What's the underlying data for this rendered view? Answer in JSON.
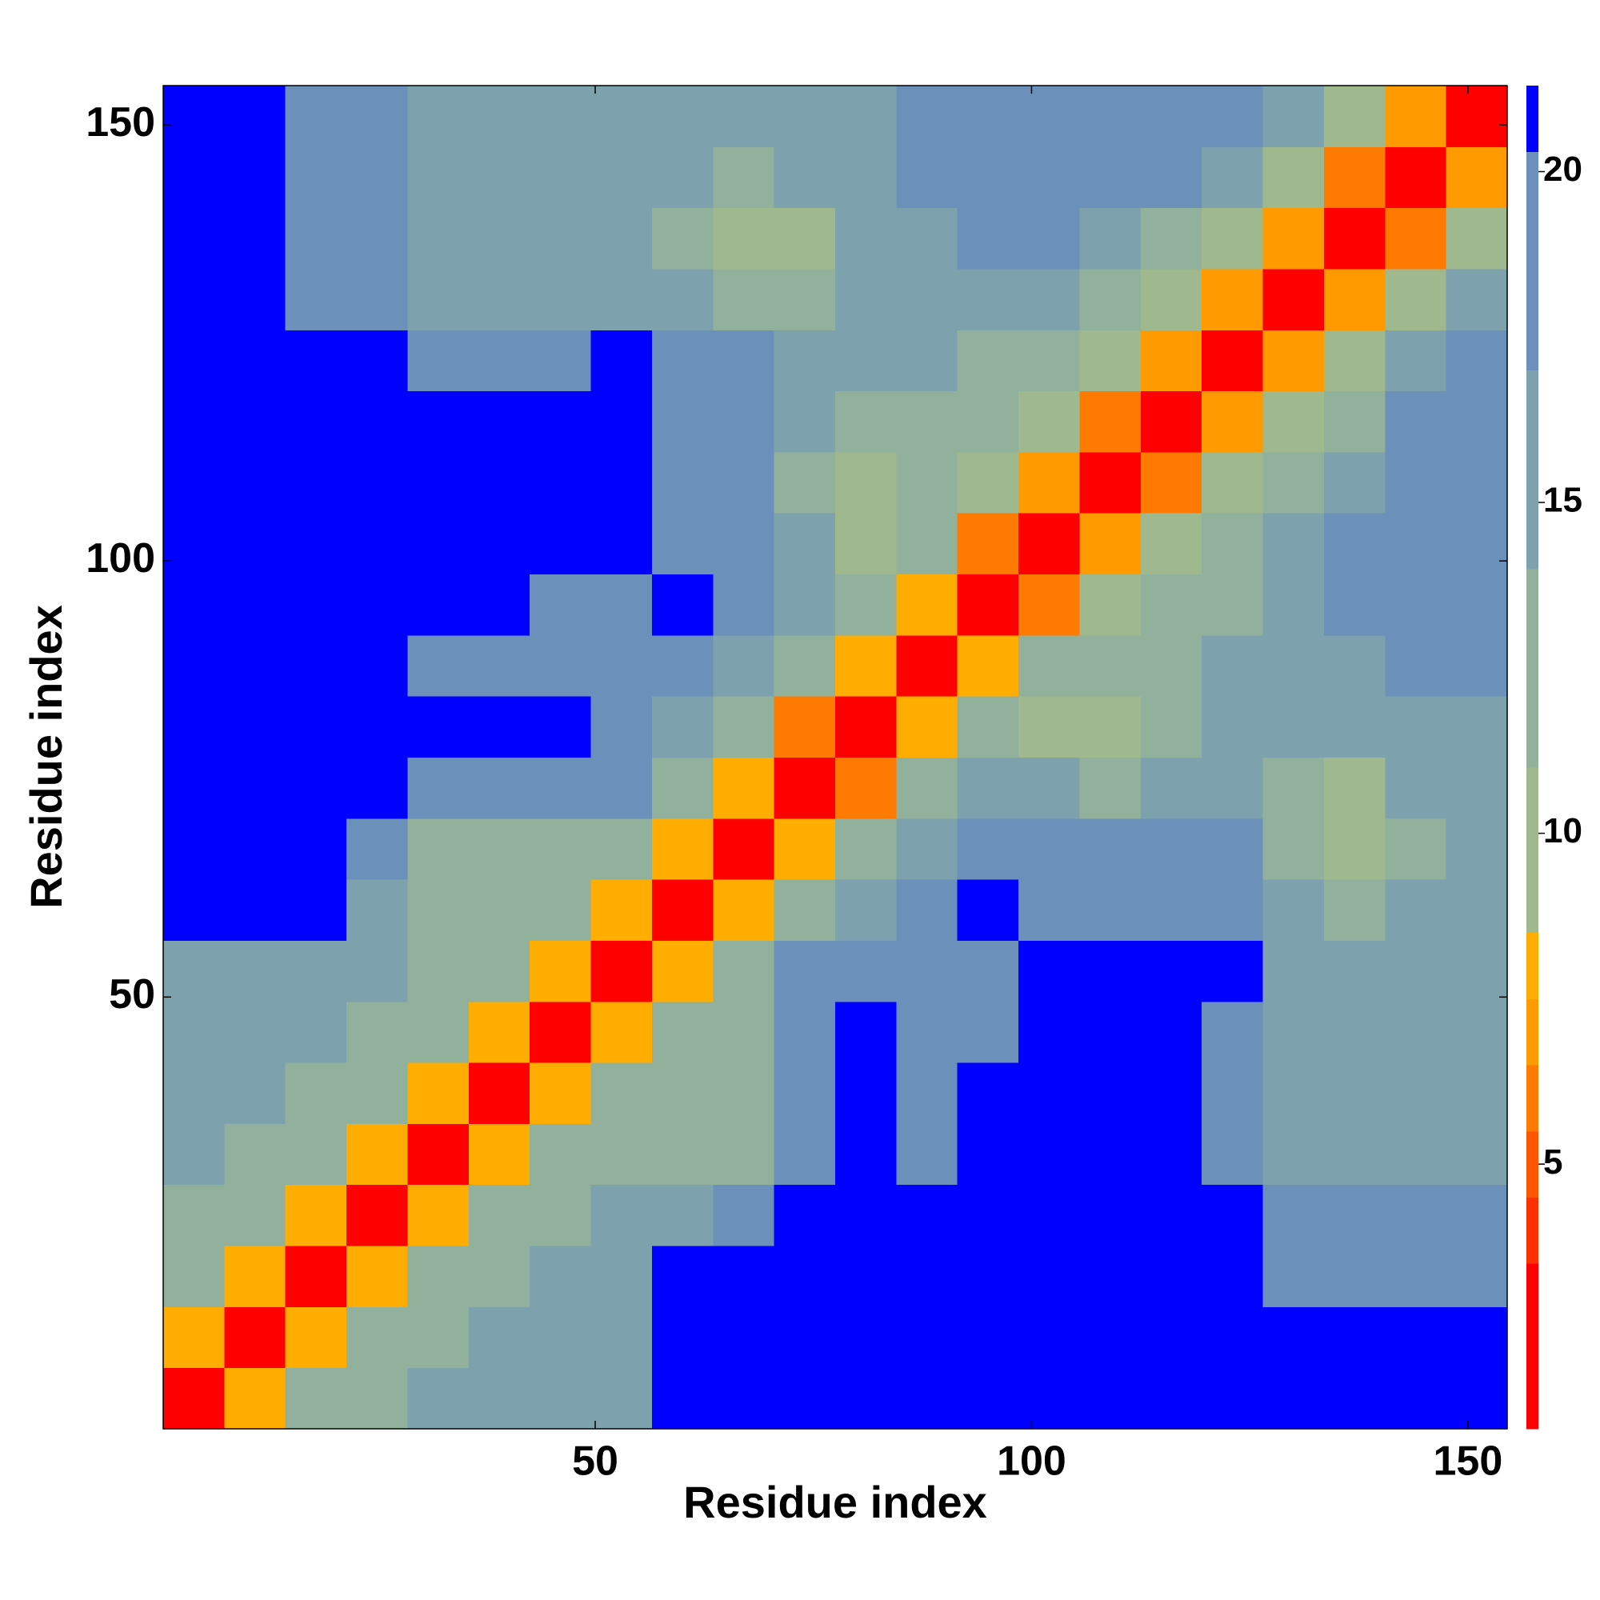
{
  "chart_data": {
    "type": "heatmap",
    "xlabel": "Residue index",
    "ylabel": "Residue index",
    "bins": [
      0.5,
      7.5,
      14.5,
      21.5,
      28.5,
      35.5,
      42.5,
      49.5,
      56.5,
      63.5,
      70.5,
      77.5,
      84.5,
      91.5,
      98.5,
      105.5,
      112.5,
      119.5,
      126.5,
      133.5,
      140.5,
      147.5,
      154.5
    ],
    "values": [
      [
        3,
        8,
        12,
        12,
        14,
        14,
        14,
        15,
        21,
        21,
        21,
        21,
        21,
        21,
        21,
        21,
        21,
        21,
        21,
        21,
        21,
        21
      ],
      [
        8,
        3,
        8,
        12,
        12,
        14,
        14,
        15,
        21,
        21,
        21,
        21,
        21,
        21,
        21,
        21,
        21,
        21,
        21,
        21,
        21,
        21
      ],
      [
        12,
        8,
        3,
        8,
        12,
        12,
        14,
        15,
        21,
        21,
        21,
        21,
        21,
        21,
        21,
        21,
        21,
        21,
        19,
        19,
        19,
        19
      ],
      [
        12,
        12,
        8,
        3,
        8,
        12,
        12,
        14,
        16,
        18,
        21,
        21,
        21,
        21,
        21,
        21,
        21,
        21,
        17,
        17,
        18,
        18
      ],
      [
        14,
        12,
        12,
        8,
        3,
        8,
        12,
        13,
        13,
        13,
        20,
        21,
        19,
        21,
        21,
        21,
        21,
        17,
        15,
        15,
        16,
        16
      ],
      [
        14,
        14,
        12,
        12,
        8,
        3,
        8,
        12,
        13,
        13,
        18,
        21,
        19,
        21,
        21,
        21,
        21,
        17,
        15,
        14,
        15,
        16
      ],
      [
        14,
        14,
        14,
        12,
        12,
        8,
        3,
        8,
        12,
        13,
        18,
        21,
        19,
        20,
        21,
        21,
        21,
        17,
        15,
        14,
        15,
        15
      ],
      [
        15,
        15,
        15,
        14,
        13,
        12,
        8,
        3,
        8,
        11,
        17,
        19,
        19,
        19,
        21,
        21,
        21,
        21,
        15,
        15,
        14,
        15
      ],
      [
        21,
        21,
        21,
        16,
        13,
        13,
        12,
        8,
        3,
        8,
        13,
        16,
        19,
        21,
        19,
        19,
        19,
        20,
        14,
        13,
        14,
        15
      ],
      [
        21,
        21,
        21,
        18,
        13,
        13,
        13,
        11,
        8,
        3,
        8,
        12,
        15,
        17,
        19,
        18,
        18,
        18,
        12,
        10,
        13,
        14
      ],
      [
        21,
        21,
        21,
        21,
        20,
        18,
        18,
        17,
        13,
        8,
        3,
        6,
        12,
        14,
        14,
        13,
        14,
        15,
        13,
        10,
        14,
        15
      ],
      [
        21,
        21,
        21,
        21,
        21,
        21,
        21,
        19,
        16,
        12,
        6,
        3,
        8,
        12,
        9,
        9,
        13,
        15,
        14,
        14,
        16,
        16
      ],
      [
        21,
        21,
        21,
        21,
        19,
        19,
        19,
        19,
        19,
        15,
        12,
        8,
        3,
        8,
        11,
        11,
        12,
        14,
        14,
        15,
        17,
        17
      ],
      [
        21,
        21,
        21,
        21,
        21,
        21,
        20,
        19,
        21,
        17,
        14,
        12,
        8,
        3,
        6,
        10,
        11,
        13,
        15,
        17,
        19,
        18
      ],
      [
        21,
        21,
        21,
        21,
        21,
        21,
        21,
        21,
        19,
        19,
        14,
        9,
        11,
        6,
        3,
        7,
        9,
        11,
        14,
        17,
        20,
        20
      ],
      [
        21,
        21,
        21,
        21,
        21,
        21,
        21,
        21,
        19,
        18,
        13,
        9,
        11,
        10,
        7,
        3,
        6,
        9,
        12,
        16,
        20,
        20
      ],
      [
        21,
        21,
        21,
        21,
        21,
        21,
        21,
        21,
        19,
        18,
        14,
        13,
        12,
        11,
        9,
        6,
        3,
        7,
        9,
        13,
        17,
        19
      ],
      [
        21,
        21,
        21,
        21,
        17,
        17,
        17,
        21,
        20,
        18,
        15,
        15,
        14,
        13,
        11,
        9,
        7,
        3,
        7,
        10,
        14,
        17
      ],
      [
        21,
        21,
        19,
        17,
        15,
        15,
        15,
        15,
        14,
        12,
        13,
        14,
        14,
        15,
        14,
        12,
        9,
        7,
        3,
        7,
        10,
        14
      ],
      [
        21,
        21,
        19,
        17,
        15,
        14,
        14,
        15,
        13,
        10,
        10,
        14,
        15,
        17,
        17,
        16,
        13,
        10,
        7,
        3,
        6,
        9
      ],
      [
        21,
        21,
        19,
        18,
        16,
        15,
        15,
        14,
        14,
        13,
        14,
        16,
        17,
        19,
        20,
        20,
        17,
        14,
        10,
        6,
        3,
        7
      ],
      [
        21,
        21,
        19,
        18,
        16,
        16,
        15,
        15,
        15,
        14,
        15,
        16,
        17,
        18,
        20,
        20,
        19,
        17,
        14,
        9,
        7,
        3
      ]
    ],
    "xlim": [
      0.5,
      154.5
    ],
    "ylim": [
      0.5,
      154.5
    ],
    "xticks": [
      50,
      100,
      150
    ],
    "yticks": [
      50,
      100,
      150
    ],
    "zlim": [
      1,
      21.3
    ],
    "zticks": [
      5,
      10,
      15,
      20
    ],
    "color_bounds": [
      1,
      3.5,
      4.5,
      5.5,
      6.5,
      7.5,
      8.5,
      11,
      14,
      17,
      20.3,
      21.3
    ],
    "colors": [
      "#ff0000",
      "#ff3000",
      "#ff5500",
      "#ff7a00",
      "#ff9a00",
      "#ffad00",
      "#9fb88e",
      "#92b19c",
      "#7ea2ad",
      "#6b90ba",
      "#0000ff"
    ]
  }
}
